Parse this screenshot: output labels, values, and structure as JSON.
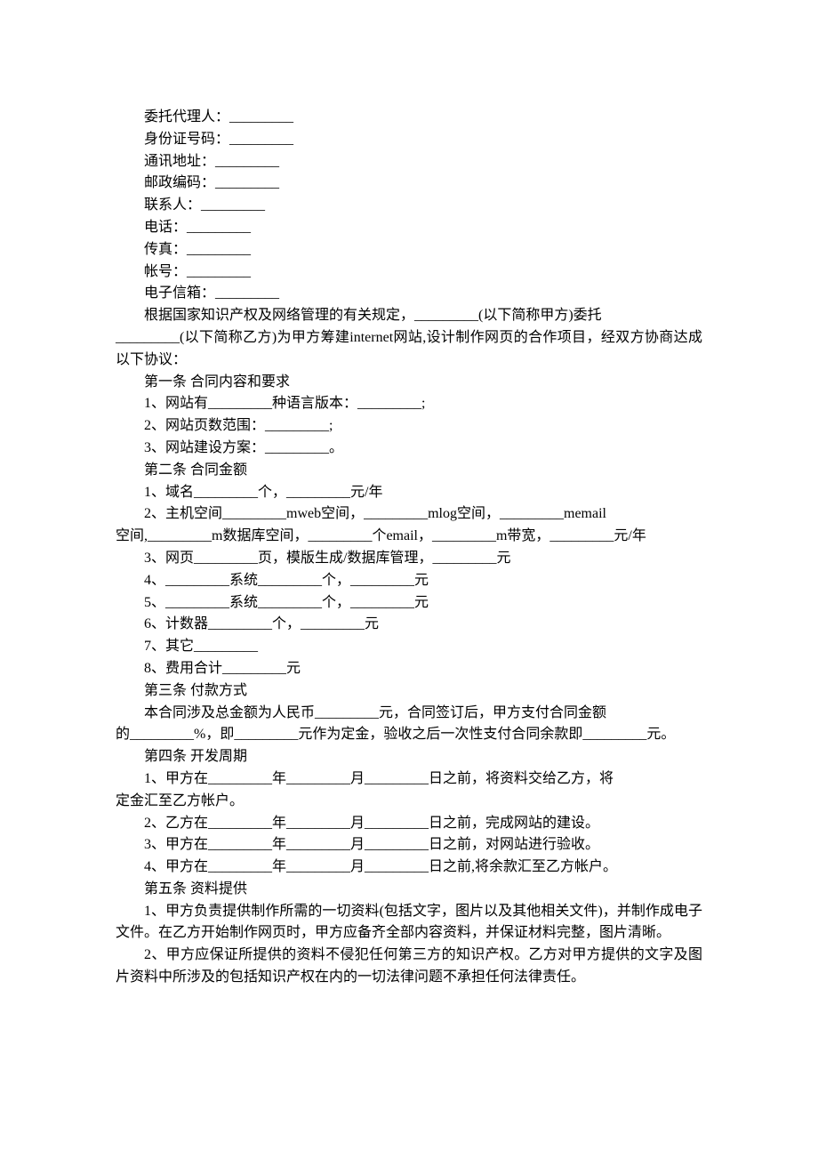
{
  "fields": {
    "f1": "委托代理人：_________",
    "f2": "身份证号码：_________",
    "f3": "通讯地址：_________",
    "f4": "邮政编码：_________",
    "f5": "联系人：_________",
    "f6": "电话：_________",
    "f7": "传真：_________",
    "f8": "帐号：_________",
    "f9": "电子信箱：_________"
  },
  "p1a": "根据国家知识产权及网络管理的有关规定，_________(以下简称甲方)委托",
  "p1b": "_________(以下简称乙方)为甲方筹建internet网站,设计制作网页的合作项目，经双方协商达成以下协议：",
  "s1": {
    "title": "第一条 合同内容和要求",
    "i1": "1、网站有_________种语言版本：_________;",
    "i2": "2、网站页数范围：_________;",
    "i3": "3、网站建设方案：_________。"
  },
  "s2": {
    "title": "第二条 合同金额",
    "i1": "1、域名_________个，_________元/年",
    "i2a": "2、主机空间_________mweb空间，_________mlog空间，_________memail",
    "i2b": "空间,_________m数据库空间，_________个email，_________m带宽，_________元/年",
    "i3": "3、网页_________页，模版生成/数据库管理，_________元",
    "i4": "4、_________系统_________个，_________元",
    "i5": "5、_________系统_________个，_________元",
    "i6": "6、计数器_________个，_________元",
    "i7": "7、其它_________",
    "i8": "8、费用合计_________元"
  },
  "s3": {
    "title": "第三条 付款方式",
    "p1a": "本合同涉及总金额为人民币_________元，合同签订后，甲方支付合同金额",
    "p1b": "的_________%，即_________元作为定金，验收之后一次性支付合同余款即_________元。"
  },
  "s4": {
    "title": "第四条 开发周期",
    "i1a": "1、甲方在_________年_________月_________日之前，将资料交给乙方，将",
    "i1b": "定金汇至乙方帐户。",
    "i2": "2、乙方在_________年_________月_________日之前，完成网站的建设。",
    "i3": "3、甲方在_________年_________月_________日之前，对网站进行验收。",
    "i4": "4、甲方在_________年_________月_________日之前,将余款汇至乙方帐户。"
  },
  "s5": {
    "title": "第五条 资料提供",
    "p1": "1、甲方负责提供制作所需的一切资料(包括文字，图片以及其他相关文件)，并制作成电子文件。在乙方开始制作网页时，甲方应备齐全部内容资料，并保证材料完整，图片清晰。",
    "p2": "2、甲方应保证所提供的资料不侵犯任何第三方的知识产权。乙方对甲方提供的文字及图片资料中所涉及的包括知识产权在内的一切法律问题不承担任何法律责任。"
  }
}
